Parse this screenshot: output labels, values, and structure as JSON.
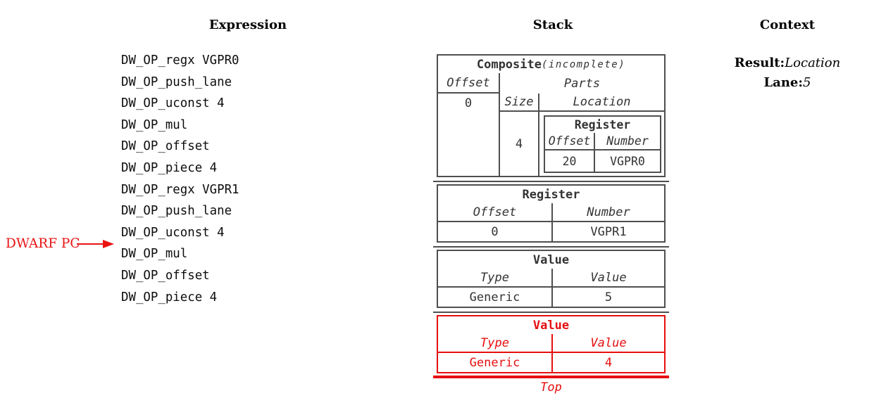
{
  "titles": {
    "expression": "Expression",
    "stack": "Stack",
    "context": "Context"
  },
  "expression": {
    "items": [
      "DW_OP_regx VGPR0",
      "DW_OP_push_lane",
      "DW_OP_uconst 4",
      "DW_OP_mul",
      "DW_OP_offset",
      "DW_OP_piece 4",
      "DW_OP_regx VGPR1",
      "DW_OP_push_lane",
      "DW_OP_uconst 4",
      "DW_OP_mul",
      "DW_OP_offset",
      "DW_OP_piece 4"
    ],
    "pc_label": "DWARF PC",
    "pc_points_between": [
      "DW_OP_uconst 4",
      "DW_OP_mul"
    ]
  },
  "stack": {
    "composite": {
      "title": "Composite",
      "title_suffix": "(incomplete)",
      "offset_header": "Offset",
      "offset_value": "0",
      "parts_header": "Parts",
      "size_header": "Size",
      "size_value": "4",
      "location_header": "Location",
      "register": {
        "title": "Register",
        "col1_header": "Offset",
        "col2_header": "Number",
        "col1_value": "20",
        "col2_value": "VGPR0"
      }
    },
    "register": {
      "title": "Register",
      "col1_header": "Offset",
      "col2_header": "Number",
      "col1_value": "0",
      "col2_value": "VGPR1"
    },
    "value": {
      "title": "Value",
      "col1_header": "Type",
      "col2_header": "Value",
      "col1_value": "Generic",
      "col2_value": "5"
    },
    "top_value": {
      "title": "Value",
      "col1_header": "Type",
      "col2_header": "Value",
      "col1_value": "Generic",
      "col2_value": "4"
    },
    "top_label": "Top"
  },
  "context": {
    "result_label": "Result:",
    "result_value": "Location",
    "lane_label": "Lane:",
    "lane_value": "5"
  },
  "colors": {
    "red_accent": "#e60f0f",
    "table_border_gray": "#4f4f4f",
    "table_text": "#333333"
  }
}
